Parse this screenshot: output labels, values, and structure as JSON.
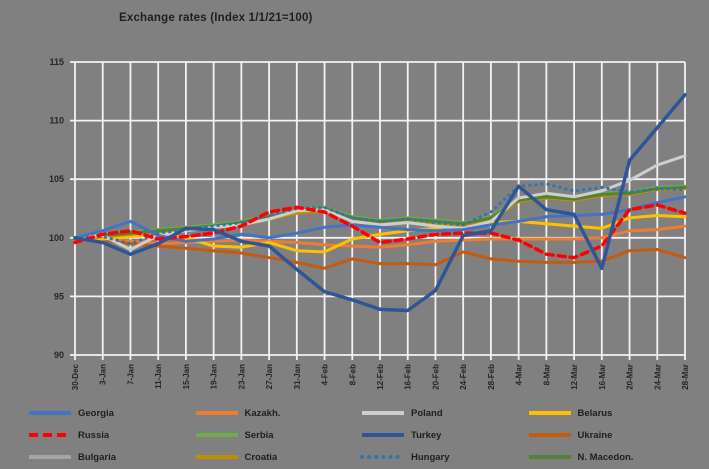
{
  "page": {
    "background": "#808080"
  },
  "chart_data": {
    "type": "line",
    "title": "Exchange rates (Index 1/1/21=100)",
    "xlabel": "",
    "ylabel": "",
    "ylim": [
      90,
      115
    ],
    "y_ticks": [
      90,
      95,
      100,
      105,
      110,
      115
    ],
    "grid": true,
    "gridline_color": "#f2f2f2",
    "axis_text_color": "#262626",
    "legend_position": "bottom",
    "x_tick_labels": [
      "30-Dec",
      "3-Jan",
      "7-Jan",
      "11-Jan",
      "15-Jan",
      "19-Jan",
      "23-Jan",
      "27-Jan",
      "31-Jan",
      "4-Feb",
      "8-Feb",
      "12-Feb",
      "16-Feb",
      "20-Feb",
      "24-Feb",
      "28-Feb",
      "4-Mar",
      "8-Mar",
      "12-Mar",
      "16-Mar",
      "20-Mar",
      "24-Mar",
      "28-Mar"
    ],
    "z_order": [
      "Kazakh.",
      "Ukraine",
      "Belarus",
      "Bulgaria",
      "Croatia",
      "Serbia",
      "N. Macedon.",
      "Poland",
      "Georgia",
      "Hungary",
      "Russia",
      "Turkey"
    ],
    "series": [
      {
        "name": "Georgia",
        "color": "#4472C4",
        "style": "solid",
        "width": 3,
        "values": [
          100.0,
          100.6,
          101.4,
          100.2,
          99.7,
          99.9,
          100.3,
          100.0,
          100.4,
          100.9,
          101.1,
          100.9,
          100.7,
          100.6,
          100.7,
          101.1,
          101.4,
          101.8,
          101.9,
          102.0,
          102.4,
          103.0,
          103.5
        ]
      },
      {
        "name": "Kazakh.",
        "color": "#ED7D31",
        "style": "solid",
        "width": 3,
        "values": [
          100.0,
          99.9,
          99.7,
          99.5,
          99.6,
          99.7,
          99.8,
          99.7,
          99.6,
          99.4,
          99.3,
          99.2,
          99.4,
          99.7,
          99.8,
          99.9,
          99.9,
          99.9,
          99.9,
          100.0,
          100.6,
          100.7,
          101.0
        ]
      },
      {
        "name": "Poland",
        "color": "#CFCDCD",
        "style": "solid",
        "width": 3,
        "values": [
          100.0,
          100.2,
          99.0,
          100.2,
          100.6,
          100.9,
          101.1,
          101.6,
          102.3,
          102.4,
          101.4,
          101.1,
          101.3,
          101.0,
          100.8,
          101.4,
          103.4,
          103.8,
          103.5,
          104.0,
          104.9,
          106.2,
          107.0
        ]
      },
      {
        "name": "Belarus",
        "color": "#FFC000",
        "style": "solid",
        "width": 3,
        "values": [
          99.8,
          99.9,
          100.1,
          100.3,
          100.0,
          99.3,
          99.2,
          99.6,
          98.9,
          98.8,
          99.9,
          100.3,
          100.6,
          100.8,
          101.2,
          101.3,
          101.4,
          101.2,
          101.0,
          100.8,
          101.7,
          101.9,
          101.8
        ]
      },
      {
        "name": "Russia",
        "color": "#FF0000",
        "style": "dashed",
        "width": 3.5,
        "values": [
          99.6,
          100.3,
          100.6,
          99.9,
          100.1,
          100.4,
          101.0,
          102.2,
          102.6,
          102.2,
          101.0,
          99.6,
          99.9,
          100.3,
          100.4,
          100.4,
          99.8,
          98.6,
          98.3,
          99.3,
          102.4,
          102.8,
          102.1
        ]
      },
      {
        "name": "Serbia",
        "color": "#70AD47",
        "style": "solid",
        "width": 3,
        "values": [
          100.0,
          100.3,
          100.5,
          100.7,
          100.9,
          101.1,
          101.4,
          101.9,
          102.4,
          102.6,
          101.8,
          101.5,
          101.7,
          101.5,
          101.3,
          101.8,
          103.3,
          103.6,
          103.4,
          103.8,
          103.9,
          104.3,
          104.4
        ]
      },
      {
        "name": "Turkey",
        "color": "#2F5597",
        "style": "solid",
        "width": 3.5,
        "values": [
          100.0,
          99.6,
          98.6,
          99.5,
          100.8,
          100.7,
          99.7,
          99.3,
          97.3,
          95.4,
          94.7,
          93.9,
          93.8,
          95.5,
          100.2,
          100.6,
          104.4,
          102.4,
          102.0,
          97.4,
          106.6,
          109.4,
          112.2
        ]
      },
      {
        "name": "Ukraine",
        "color": "#C55A11",
        "style": "solid",
        "width": 3,
        "values": [
          100.0,
          99.8,
          99.5,
          99.3,
          99.1,
          98.9,
          98.7,
          98.3,
          97.9,
          97.4,
          98.2,
          97.8,
          97.8,
          97.7,
          98.8,
          98.2,
          98.0,
          97.9,
          97.9,
          98.0,
          98.9,
          99.0,
          98.3
        ]
      },
      {
        "name": "Bulgaria",
        "color": "#A5A5A5",
        "style": "solid",
        "width": 3,
        "values": [
          100.0,
          100.2,
          100.4,
          100.6,
          100.8,
          101.0,
          101.2,
          101.7,
          102.2,
          102.4,
          101.6,
          101.3,
          101.5,
          101.3,
          101.1,
          101.6,
          103.2,
          103.5,
          103.3,
          103.7,
          103.8,
          104.2,
          104.3
        ]
      },
      {
        "name": "Croatia",
        "color": "#BF8F00",
        "style": "solid",
        "width": 3,
        "values": [
          99.8,
          100.1,
          100.3,
          100.5,
          100.7,
          100.9,
          101.1,
          101.6,
          102.1,
          102.3,
          101.5,
          101.2,
          101.4,
          101.2,
          101.0,
          101.5,
          103.1,
          103.4,
          103.2,
          103.6,
          103.7,
          104.1,
          104.2
        ]
      },
      {
        "name": "Hungary",
        "color": "#2E75B6",
        "style": "dotted",
        "width": 3.2,
        "values": [
          100.0,
          100.1,
          99.5,
          100.4,
          100.7,
          101.0,
          101.3,
          101.9,
          102.5,
          102.6,
          101.7,
          101.4,
          101.6,
          101.3,
          101.1,
          102.2,
          104.4,
          104.6,
          104.0,
          104.3,
          103.9,
          104.2,
          104.1
        ]
      },
      {
        "name": "N. Macedon.",
        "color": "#538135",
        "style": "solid",
        "width": 3,
        "values": [
          99.9,
          100.2,
          100.4,
          100.6,
          100.8,
          101.0,
          101.3,
          101.8,
          102.3,
          102.5,
          101.7,
          101.4,
          101.6,
          101.4,
          101.2,
          101.7,
          103.2,
          103.5,
          103.3,
          103.7,
          103.8,
          104.2,
          104.3
        ]
      }
    ]
  }
}
